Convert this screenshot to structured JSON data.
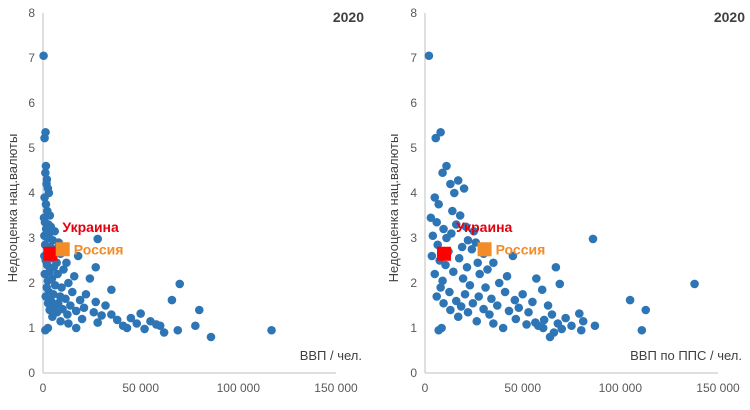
{
  "chart_data": [
    {
      "type": "scatter",
      "year_label": "2020",
      "xlabel": "ВВП / чел.",
      "ylabel": "Недооценка нац.валюты",
      "xlim": [
        0,
        150000
      ],
      "ylim": [
        0,
        8
      ],
      "x_ticks": [
        "0",
        "50 000",
        "100 000",
        "150 000"
      ],
      "y_ticks": [
        "0",
        "1",
        "2",
        "3",
        "4",
        "5",
        "6",
        "7",
        "8"
      ],
      "point_color": "#2E75B6",
      "points": [
        [
          300,
          7.05
        ],
        [
          1300,
          5.35
        ],
        [
          800,
          5.22
        ],
        [
          1500,
          4.6
        ],
        [
          1200,
          4.45
        ],
        [
          2000,
          4.3
        ],
        [
          1800,
          4.2
        ],
        [
          2500,
          4.1
        ],
        [
          3000,
          4.0
        ],
        [
          800,
          3.9
        ],
        [
          1500,
          3.75
        ],
        [
          2200,
          3.6
        ],
        [
          3500,
          3.5
        ],
        [
          500,
          3.45
        ],
        [
          1000,
          3.35
        ],
        [
          2800,
          3.3
        ],
        [
          4000,
          3.25
        ],
        [
          1600,
          3.2
        ],
        [
          6000,
          3.15
        ],
        [
          3200,
          3.1
        ],
        [
          700,
          3.05
        ],
        [
          2300,
          3.0
        ],
        [
          5000,
          2.95
        ],
        [
          8000,
          2.9
        ],
        [
          28000,
          2.98
        ],
        [
          1100,
          2.85
        ],
        [
          3800,
          2.8
        ],
        [
          6500,
          2.75
        ],
        [
          2600,
          2.7
        ],
        [
          9000,
          2.65
        ],
        [
          18000,
          2.6
        ],
        [
          700,
          2.6
        ],
        [
          4300,
          2.55
        ],
        [
          1400,
          2.5
        ],
        [
          7000,
          2.45
        ],
        [
          12000,
          2.45
        ],
        [
          2100,
          2.4
        ],
        [
          5500,
          2.35
        ],
        [
          27000,
          2.35
        ],
        [
          10500,
          2.3
        ],
        [
          3300,
          2.25
        ],
        [
          900,
          2.2
        ],
        [
          7500,
          2.2
        ],
        [
          16000,
          2.15
        ],
        [
          24000,
          2.1
        ],
        [
          4600,
          2.1
        ],
        [
          2500,
          2.05
        ],
        [
          13000,
          2.0
        ],
        [
          70000,
          1.98
        ],
        [
          6200,
          1.95
        ],
        [
          1900,
          1.9
        ],
        [
          9500,
          1.9
        ],
        [
          35000,
          1.85
        ],
        [
          3000,
          1.8
        ],
        [
          15000,
          1.8
        ],
        [
          22000,
          1.75
        ],
        [
          5300,
          1.75
        ],
        [
          8800,
          1.7
        ],
        [
          1400,
          1.7
        ],
        [
          11500,
          1.65
        ],
        [
          19000,
          1.62
        ],
        [
          66000,
          1.62
        ],
        [
          4100,
          1.6
        ],
        [
          27000,
          1.58
        ],
        [
          7800,
          1.55
        ],
        [
          2600,
          1.55
        ],
        [
          14000,
          1.5
        ],
        [
          32000,
          1.5
        ],
        [
          5800,
          1.48
        ],
        [
          21000,
          1.45
        ],
        [
          10000,
          1.42
        ],
        [
          80000,
          1.4
        ],
        [
          3400,
          1.4
        ],
        [
          17000,
          1.38
        ],
        [
          26000,
          1.35
        ],
        [
          7200,
          1.35
        ],
        [
          50000,
          1.32
        ],
        [
          12500,
          1.3
        ],
        [
          35000,
          1.3
        ],
        [
          4800,
          1.25
        ],
        [
          45000,
          1.22
        ],
        [
          20000,
          1.2
        ],
        [
          38000,
          1.18
        ],
        [
          9000,
          1.15
        ],
        [
          55000,
          1.15
        ],
        [
          28000,
          1.12
        ],
        [
          48000,
          1.1
        ],
        [
          13000,
          1.1
        ],
        [
          60000,
          1.05
        ],
        [
          41000,
          1.05
        ],
        [
          78000,
          1.05
        ],
        [
          2500,
          1.0
        ],
        [
          17000,
          1.0
        ],
        [
          43000,
          1.0
        ],
        [
          52000,
          0.98
        ],
        [
          117000,
          0.95
        ],
        [
          69000,
          0.95
        ],
        [
          62000,
          0.9
        ],
        [
          86000,
          0.8
        ],
        [
          1200,
          0.95
        ],
        [
          30000,
          1.28
        ],
        [
          58000,
          1.08
        ]
      ],
      "highlights": [
        {
          "name": "Украина",
          "x": 3800,
          "y": 2.65,
          "color": "#FF0000",
          "label_color": "#E3000F"
        },
        {
          "name": "Россия",
          "x": 10100,
          "y": 2.75,
          "color": "#F28C28",
          "label_color": "#F28C28"
        }
      ]
    },
    {
      "type": "scatter",
      "year_label": "2020",
      "xlabel": "ВВП по ППС / чел.",
      "ylabel": "Недооценка нац.валюты",
      "xlim": [
        0,
        150000
      ],
      "ylim": [
        0,
        8
      ],
      "x_ticks": [
        "0",
        "50 000",
        "100 000",
        "150 000"
      ],
      "y_ticks": [
        "0",
        "1",
        "2",
        "3",
        "4",
        "5",
        "6",
        "7",
        "8"
      ],
      "point_color": "#2E75B6",
      "points": [
        [
          2000,
          7.05
        ],
        [
          8000,
          5.35
        ],
        [
          5500,
          5.22
        ],
        [
          11000,
          4.6
        ],
        [
          9000,
          4.45
        ],
        [
          17000,
          4.28
        ],
        [
          13000,
          4.2
        ],
        [
          20000,
          4.1
        ],
        [
          15000,
          4.0
        ],
        [
          5000,
          3.9
        ],
        [
          7000,
          3.75
        ],
        [
          14000,
          3.6
        ],
        [
          18000,
          3.5
        ],
        [
          3000,
          3.45
        ],
        [
          6000,
          3.35
        ],
        [
          16000,
          3.3
        ],
        [
          21000,
          3.25
        ],
        [
          9500,
          3.2
        ],
        [
          25000,
          3.15
        ],
        [
          13500,
          3.1
        ],
        [
          4000,
          3.05
        ],
        [
          11000,
          3.0
        ],
        [
          22000,
          2.95
        ],
        [
          26000,
          2.9
        ],
        [
          86000,
          2.98
        ],
        [
          6500,
          2.85
        ],
        [
          19000,
          2.8
        ],
        [
          24000,
          2.75
        ],
        [
          12000,
          2.7
        ],
        [
          30000,
          2.65
        ],
        [
          45000,
          2.6
        ],
        [
          3500,
          2.6
        ],
        [
          17500,
          2.55
        ],
        [
          7500,
          2.5
        ],
        [
          27000,
          2.45
        ],
        [
          35000,
          2.45
        ],
        [
          10500,
          2.4
        ],
        [
          21500,
          2.35
        ],
        [
          67000,
          2.35
        ],
        [
          32000,
          2.3
        ],
        [
          14500,
          2.25
        ],
        [
          5000,
          2.2
        ],
        [
          28000,
          2.2
        ],
        [
          42000,
          2.15
        ],
        [
          57000,
          2.1
        ],
        [
          19500,
          2.1
        ],
        [
          9000,
          2.05
        ],
        [
          38000,
          2.0
        ],
        [
          69000,
          1.98
        ],
        [
          23000,
          1.95
        ],
        [
          8000,
          1.9
        ],
        [
          31000,
          1.9
        ],
        [
          60000,
          1.85
        ],
        [
          12500,
          1.8
        ],
        [
          41000,
          1.8
        ],
        [
          50000,
          1.75
        ],
        [
          20500,
          1.75
        ],
        [
          27500,
          1.7
        ],
        [
          6000,
          1.7
        ],
        [
          34000,
          1.65
        ],
        [
          46000,
          1.62
        ],
        [
          105000,
          1.62
        ],
        [
          16000,
          1.6
        ],
        [
          55000,
          1.58
        ],
        [
          24500,
          1.55
        ],
        [
          9500,
          1.55
        ],
        [
          37000,
          1.5
        ],
        [
          63000,
          1.5
        ],
        [
          18500,
          1.48
        ],
        [
          48000,
          1.45
        ],
        [
          30000,
          1.42
        ],
        [
          113000,
          1.4
        ],
        [
          13000,
          1.4
        ],
        [
          43000,
          1.38
        ],
        [
          53000,
          1.35
        ],
        [
          22000,
          1.35
        ],
        [
          79000,
          1.32
        ],
        [
          33000,
          1.3
        ],
        [
          65000,
          1.3
        ],
        [
          17000,
          1.25
        ],
        [
          72000,
          1.22
        ],
        [
          46500,
          1.2
        ],
        [
          61000,
          1.18
        ],
        [
          26500,
          1.15
        ],
        [
          81000,
          1.15
        ],
        [
          56500,
          1.12
        ],
        [
          68000,
          1.1
        ],
        [
          35000,
          1.1
        ],
        [
          75000,
          1.05
        ],
        [
          58000,
          1.05
        ],
        [
          87000,
          1.05
        ],
        [
          8500,
          1.0
        ],
        [
          40000,
          1.0
        ],
        [
          60500,
          1.0
        ],
        [
          70000,
          0.98
        ],
        [
          111000,
          0.95
        ],
        [
          80000,
          0.95
        ],
        [
          66000,
          0.9
        ],
        [
          64000,
          0.8
        ],
        [
          7000,
          0.95
        ],
        [
          138000,
          1.98
        ],
        [
          52000,
          1.08
        ]
      ],
      "highlights": [
        {
          "name": "Украина",
          "x": 9700,
          "y": 2.65,
          "color": "#FF0000",
          "label_color": "#E3000F"
        },
        {
          "name": "Россия",
          "x": 30500,
          "y": 2.75,
          "color": "#F28C28",
          "label_color": "#F28C28"
        }
      ]
    }
  ]
}
